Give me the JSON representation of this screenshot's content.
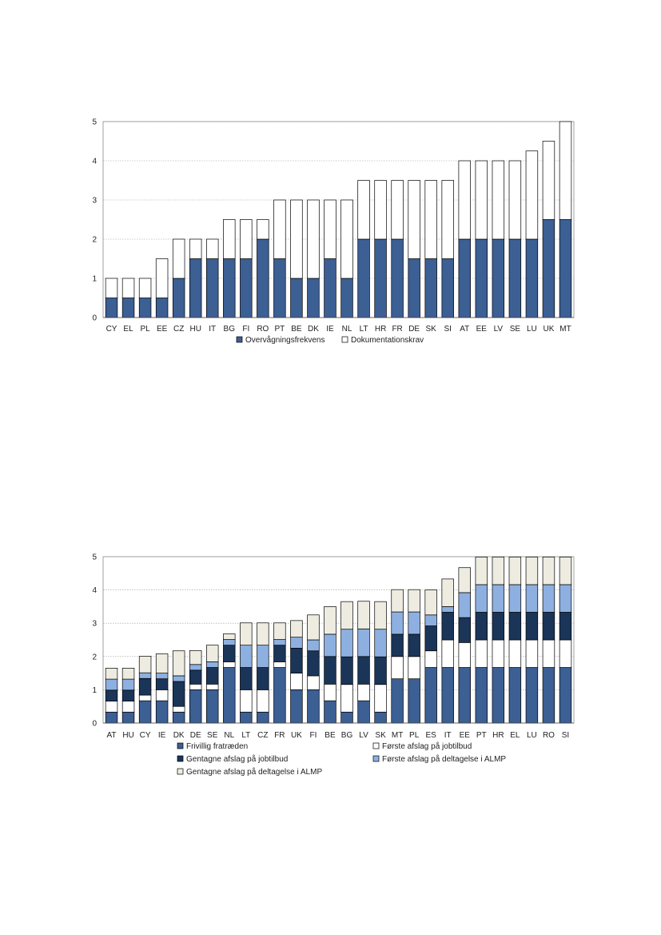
{
  "chart_data": [
    {
      "type": "bar",
      "stacked": true,
      "grid": true,
      "legend_position": "bottom",
      "ylim": [
        0,
        5
      ],
      "yticks": [
        0,
        1,
        2,
        3,
        4,
        5
      ],
      "categories": [
        "CY",
        "EL",
        "PL",
        "EE",
        "CZ",
        "HU",
        "IT",
        "BG",
        "FI",
        "RO",
        "PT",
        "BE",
        "DK",
        "IE",
        "NL",
        "LT",
        "HR",
        "FR",
        "DE",
        "SK",
        "SI",
        "AT",
        "EE",
        "LV",
        "SE",
        "LU",
        "UK",
        "MT"
      ],
      "series": [
        {
          "name": "Overvågningsfrekvens",
          "color": "#3c5f94",
          "values": [
            0.5,
            0.5,
            0.5,
            0.5,
            1,
            1.5,
            1.5,
            1.5,
            1.5,
            2,
            1.5,
            1,
            1,
            1.5,
            1,
            2,
            2,
            2,
            1.5,
            1.5,
            1.5,
            2,
            2,
            2,
            2,
            2,
            2.5,
            2.5
          ]
        },
        {
          "name": "Dokumentationskrav",
          "color": "#ffffff",
          "values": [
            0.5,
            0.5,
            0.5,
            1,
            1,
            0.5,
            0.5,
            1,
            1,
            0.5,
            1.5,
            2,
            2,
            1.5,
            2,
            1.5,
            1.5,
            1.5,
            2,
            2,
            2,
            2,
            2,
            2,
            2,
            2.25,
            2,
            2.5
          ]
        }
      ]
    },
    {
      "type": "bar",
      "stacked": true,
      "grid": true,
      "legend_position": "bottom",
      "ylim": [
        0,
        5
      ],
      "yticks": [
        0,
        1,
        2,
        3,
        4,
        5
      ],
      "categories": [
        "AT",
        "HU",
        "CY",
        "IE",
        "DK",
        "DE",
        "SE",
        "NL",
        "LT",
        "CZ",
        "FR",
        "UK",
        "FI",
        "BE",
        "BG",
        "LV",
        "SK",
        "MT",
        "PL",
        "ES",
        "IT",
        "EE",
        "PT",
        "HR",
        "EL",
        "LU",
        "RO",
        "SI"
      ],
      "series": [
        {
          "name": "Frivillig fratræden",
          "color": "#3c5f94",
          "values": [
            0.33,
            0.33,
            0.67,
            0.67,
            0.33,
            1,
            1,
            1.67,
            0.33,
            0.33,
            1.67,
            1,
            1,
            0.67,
            0.33,
            0.67,
            0.33,
            1.33,
            1.33,
            1.67,
            1.67,
            1.67,
            1.67,
            1.67,
            1.67,
            1.67,
            1.67,
            1.67
          ]
        },
        {
          "name": "Første afslag på jobtilbud",
          "color": "#ffffff",
          "values": [
            0.33,
            0.33,
            0.17,
            0.33,
            0.17,
            0.17,
            0.17,
            0.17,
            0.67,
            0.67,
            0.17,
            0.5,
            0.42,
            0.5,
            0.83,
            0.5,
            0.83,
            0.67,
            0.67,
            0.5,
            0.83,
            0.75,
            0.83,
            0.83,
            0.83,
            0.83,
            0.83,
            0.83
          ]
        },
        {
          "name": "Gentagne afslag på jobtilbud",
          "color": "#1a3558",
          "values": [
            0.33,
            0.33,
            0.5,
            0.33,
            0.75,
            0.42,
            0.5,
            0.5,
            0.67,
            0.67,
            0.5,
            0.75,
            0.75,
            0.83,
            0.83,
            0.83,
            0.83,
            0.67,
            0.67,
            0.75,
            0.83,
            0.75,
            0.83,
            0.83,
            0.83,
            0.83,
            0.83,
            0.83
          ]
        },
        {
          "name": "Første afslag på deltagelse i ALMP",
          "color": "#8eb0e0",
          "values": [
            0.33,
            0.33,
            0.17,
            0.17,
            0.17,
            0.17,
            0.17,
            0.17,
            0.67,
            0.67,
            0.17,
            0.33,
            0.33,
            0.67,
            0.83,
            0.83,
            0.83,
            0.67,
            0.67,
            0.33,
            0.17,
            0.75,
            0.83,
            0.83,
            0.83,
            0.83,
            0.83,
            0.83
          ]
        },
        {
          "name": "Gentagne afslag på deltagelse i ALMP",
          "color": "#eeece1",
          "values": [
            0.33,
            0.33,
            0.5,
            0.58,
            0.75,
            0.42,
            0.5,
            0.17,
            0.67,
            0.67,
            0.5,
            0.5,
            0.75,
            0.83,
            0.83,
            0.83,
            0.83,
            0.67,
            0.67,
            0.75,
            0.83,
            0.75,
            0.83,
            0.83,
            0.83,
            0.83,
            0.83,
            0.83
          ]
        }
      ]
    }
  ]
}
